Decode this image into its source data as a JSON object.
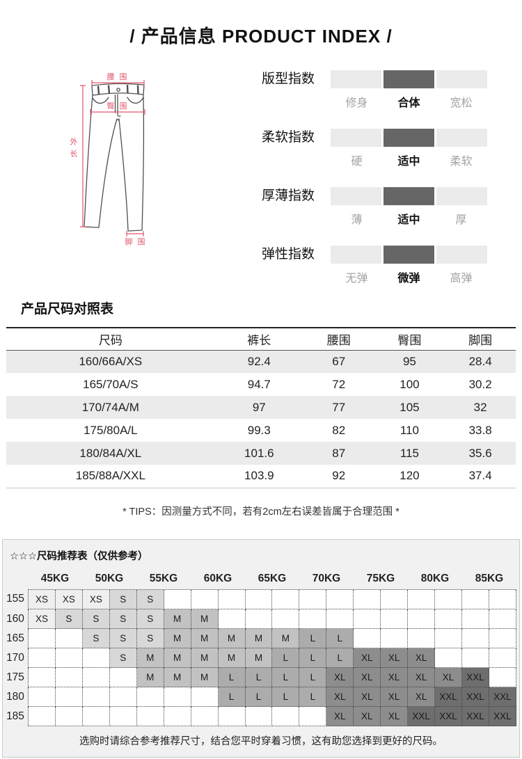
{
  "page": {
    "title": "/  产品信息 PRODUCT INDEX  /"
  },
  "colors": {
    "measure_line": "#e0566a",
    "bar_light": "#ebebeb",
    "bar_dark": "#666666",
    "zebra": "#ebebeb",
    "box_bg": "#f1f1f1"
  },
  "diagram": {
    "labels": {
      "waist": "腰 围",
      "hip": "臀 围",
      "outseam": "外长",
      "leg": "脚 围"
    }
  },
  "indices": [
    {
      "name": "版型指数",
      "options": [
        "修身",
        "合体",
        "宽松"
      ],
      "selected": 1
    },
    {
      "name": "柔软指数",
      "options": [
        "硬",
        "适中",
        "柔软"
      ],
      "selected": 1
    },
    {
      "name": "厚薄指数",
      "options": [
        "薄",
        "适中",
        "厚"
      ],
      "selected": 1
    },
    {
      "name": "弹性指数",
      "options": [
        "无弹",
        "微弹",
        "高弹"
      ],
      "selected": 1
    }
  ],
  "size_table": {
    "title": "产品尺码对照表",
    "headers": [
      "尺码",
      "裤长",
      "腰围",
      "臀围",
      "脚围"
    ],
    "rows": [
      [
        "160/66A/XS",
        "92.4",
        "67",
        "95",
        "28.4"
      ],
      [
        "165/70A/S",
        "94.7",
        "72",
        "100",
        "30.2"
      ],
      [
        "170/74A/M",
        "97",
        "77",
        "105",
        "32"
      ],
      [
        "175/80A/L",
        "99.3",
        "82",
        "110",
        "33.8"
      ],
      [
        "180/84A/XL",
        "101.6",
        "87",
        "115",
        "35.6"
      ],
      [
        "185/88A/XXL",
        "103.9",
        "92",
        "120",
        "37.4"
      ]
    ],
    "tips": "* TIPS：因测量方式不同，若有2cm左右误差皆属于合理范围 *"
  },
  "recommend_table": {
    "title": "☆☆☆尺码推荐表（仅供参考）",
    "weights": [
      "45KG",
      "50KG",
      "55KG",
      "60KG",
      "65KG",
      "70KG",
      "75KG",
      "80KG",
      "85KG"
    ],
    "heights": [
      "155",
      "160",
      "165",
      "170",
      "175",
      "180",
      "185"
    ],
    "cells": [
      [
        "XS",
        "XS",
        "XS",
        "S",
        "S",
        "",
        "",
        "",
        "",
        "",
        "",
        "",
        "",
        "",
        "",
        "",
        "",
        ""
      ],
      [
        "XS",
        "S",
        "S",
        "S",
        "S",
        "M",
        "M",
        "",
        "",
        "",
        "",
        "",
        "",
        "",
        "",
        "",
        "",
        ""
      ],
      [
        "",
        "",
        "S",
        "S",
        "S",
        "M",
        "M",
        "M",
        "M",
        "M",
        "L",
        "L",
        "",
        "",
        "",
        "",
        "",
        ""
      ],
      [
        "",
        "",
        "",
        "S",
        "M",
        "M",
        "M",
        "M",
        "M",
        "L",
        "L",
        "L",
        "XL",
        "XL",
        "XL",
        "",
        "",
        ""
      ],
      [
        "",
        "",
        "",
        "",
        "M",
        "M",
        "M",
        "L",
        "L",
        "L",
        "L",
        "XL",
        "XL",
        "XL",
        "XL",
        "XL",
        "XXL",
        ""
      ],
      [
        "",
        "",
        "",
        "",
        "",
        "",
        "",
        "L",
        "L",
        "L",
        "L",
        "XL",
        "XL",
        "XL",
        "XL",
        "XXL",
        "XXL",
        "XXL"
      ],
      [
        "",
        "",
        "",
        "",
        "",
        "",
        "",
        "",
        "",
        "",
        "",
        "XL",
        "XL",
        "XL",
        "XXL",
        "XXL",
        "XXL",
        "XXL"
      ]
    ],
    "size_colors": {
      "XS": "#efefef",
      "S": "#d8d8d8",
      "M": "#c2c2c2",
      "L": "#acacac",
      "XL": "#8d8d8d",
      "XXL": "#6e6e6e"
    },
    "note": "选购时请综合参考推荐尺寸，结合您平时穿着习惯，这有助您选择到更好的尺码。"
  }
}
